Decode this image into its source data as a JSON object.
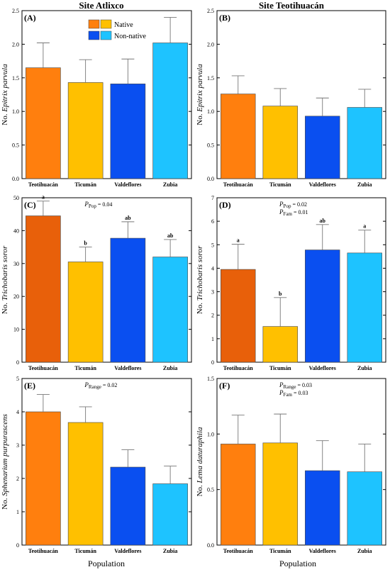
{
  "figure": {
    "site_left": "Site Atlixco",
    "site_right": "Site Teotihuacán",
    "x_title": "Population"
  },
  "legend": {
    "native_label": "Native",
    "nonnative_label": "Non-native"
  },
  "colors": {
    "dark_orange": "#ff7f0e",
    "yellow": "#ffc000",
    "blue": "#0a4ff0",
    "light_blue": "#1ec3ff",
    "dark_orange_c": "#e8600a"
  },
  "chart_data": [
    {
      "panel": "(A)",
      "type": "bar",
      "categories": [
        "Teotihuacán",
        "Ticumán",
        "Valdeflores",
        "Zubia"
      ],
      "values": [
        1.65,
        1.43,
        1.41,
        2.02
      ],
      "errors": [
        0.37,
        0.34,
        0.37,
        0.38
      ],
      "ylabel_prefix": "No. ",
      "ylabel_species": "Epitrix parvula",
      "ylim": [
        0,
        2.5
      ],
      "yticks": [
        "0.0",
        "0.5",
        "1.0",
        "1.5",
        "2.0",
        "2.5"
      ],
      "letters": [],
      "stats": []
    },
    {
      "panel": "(B)",
      "type": "bar",
      "categories": [
        "Teotihuacán",
        "Ticumán",
        "Valdeflores",
        "Zubia"
      ],
      "values": [
        1.26,
        1.08,
        0.93,
        1.06
      ],
      "errors": [
        0.27,
        0.26,
        0.27,
        0.27
      ],
      "ylabel_prefix": "No. ",
      "ylabel_species": "Epitrix parvula",
      "ylim": [
        0,
        2.5
      ],
      "yticks": [
        "0.0",
        "0.5",
        "1.0",
        "1.5",
        "2.0",
        "2.5"
      ],
      "letters": [],
      "stats": []
    },
    {
      "panel": "(C)",
      "type": "bar",
      "categories": [
        "Teotihuacán",
        "Ticumán",
        "Valdeflores",
        "Zubia"
      ],
      "values": [
        44.5,
        30.5,
        37.7,
        32.0
      ],
      "errors": [
        4.5,
        4.5,
        5.0,
        5.3
      ],
      "ylabel_prefix": "No. ",
      "ylabel_species": "Trichobaris soror",
      "ylim": [
        0,
        50
      ],
      "yticks": [
        "0",
        "10",
        "20",
        "30",
        "40",
        "50"
      ],
      "letters": [
        "a",
        "b",
        "ab",
        "ab"
      ],
      "stats": [
        {
          "sub": "Pop",
          "value": "0.04"
        }
      ]
    },
    {
      "panel": "(D)",
      "type": "bar",
      "categories": [
        "Teotihuacán",
        "Ticumán",
        "Valdeflores",
        "Zubia"
      ],
      "values": [
        3.95,
        1.52,
        4.78,
        4.65
      ],
      "errors": [
        1.07,
        1.23,
        1.08,
        0.97
      ],
      "ylabel_prefix": "No. ",
      "ylabel_species": "Trichobaris soror",
      "ylim": [
        0,
        7
      ],
      "yticks": [
        "0",
        "1",
        "2",
        "3",
        "4",
        "5",
        "6",
        "7"
      ],
      "letters": [
        "a",
        "b",
        "ab",
        "a"
      ],
      "stats": [
        {
          "sub": "Pop",
          "value": "0.02"
        },
        {
          "sub": "Fam",
          "value": "0.01"
        }
      ]
    },
    {
      "panel": "(E)",
      "type": "bar",
      "categories": [
        "Teotihuacán",
        "Ticumán",
        "Valdeflores",
        "Zubia"
      ],
      "values": [
        4.0,
        3.68,
        2.34,
        1.84
      ],
      "errors": [
        0.52,
        0.47,
        0.52,
        0.53
      ],
      "ylabel_prefix": "No. ",
      "ylabel_species": "Sphenarium purpurascens",
      "ylim": [
        0,
        5
      ],
      "yticks": [
        "0",
        "1",
        "2",
        "3",
        "4",
        "5"
      ],
      "letters": [],
      "stats": [
        {
          "sub": "Range",
          "value": "0.02"
        }
      ]
    },
    {
      "panel": "(F)",
      "type": "bar",
      "categories": [
        "Teotihuacán",
        "Ticumán",
        "Valdeflores",
        "Zubia"
      ],
      "values": [
        0.91,
        0.92,
        0.67,
        0.66
      ],
      "errors": [
        0.26,
        0.26,
        0.27,
        0.25
      ],
      "ylabel_prefix": "No. ",
      "ylabel_species": "Lema daturaphila",
      "ylim": [
        0,
        1.5
      ],
      "yticks": [
        "0.0",
        "0.5",
        "1.0",
        "1.5"
      ],
      "letters": [],
      "stats": [
        {
          "sub": "Range",
          "value": "0.03"
        },
        {
          "sub": "Fam",
          "value": "0.03"
        }
      ]
    }
  ]
}
